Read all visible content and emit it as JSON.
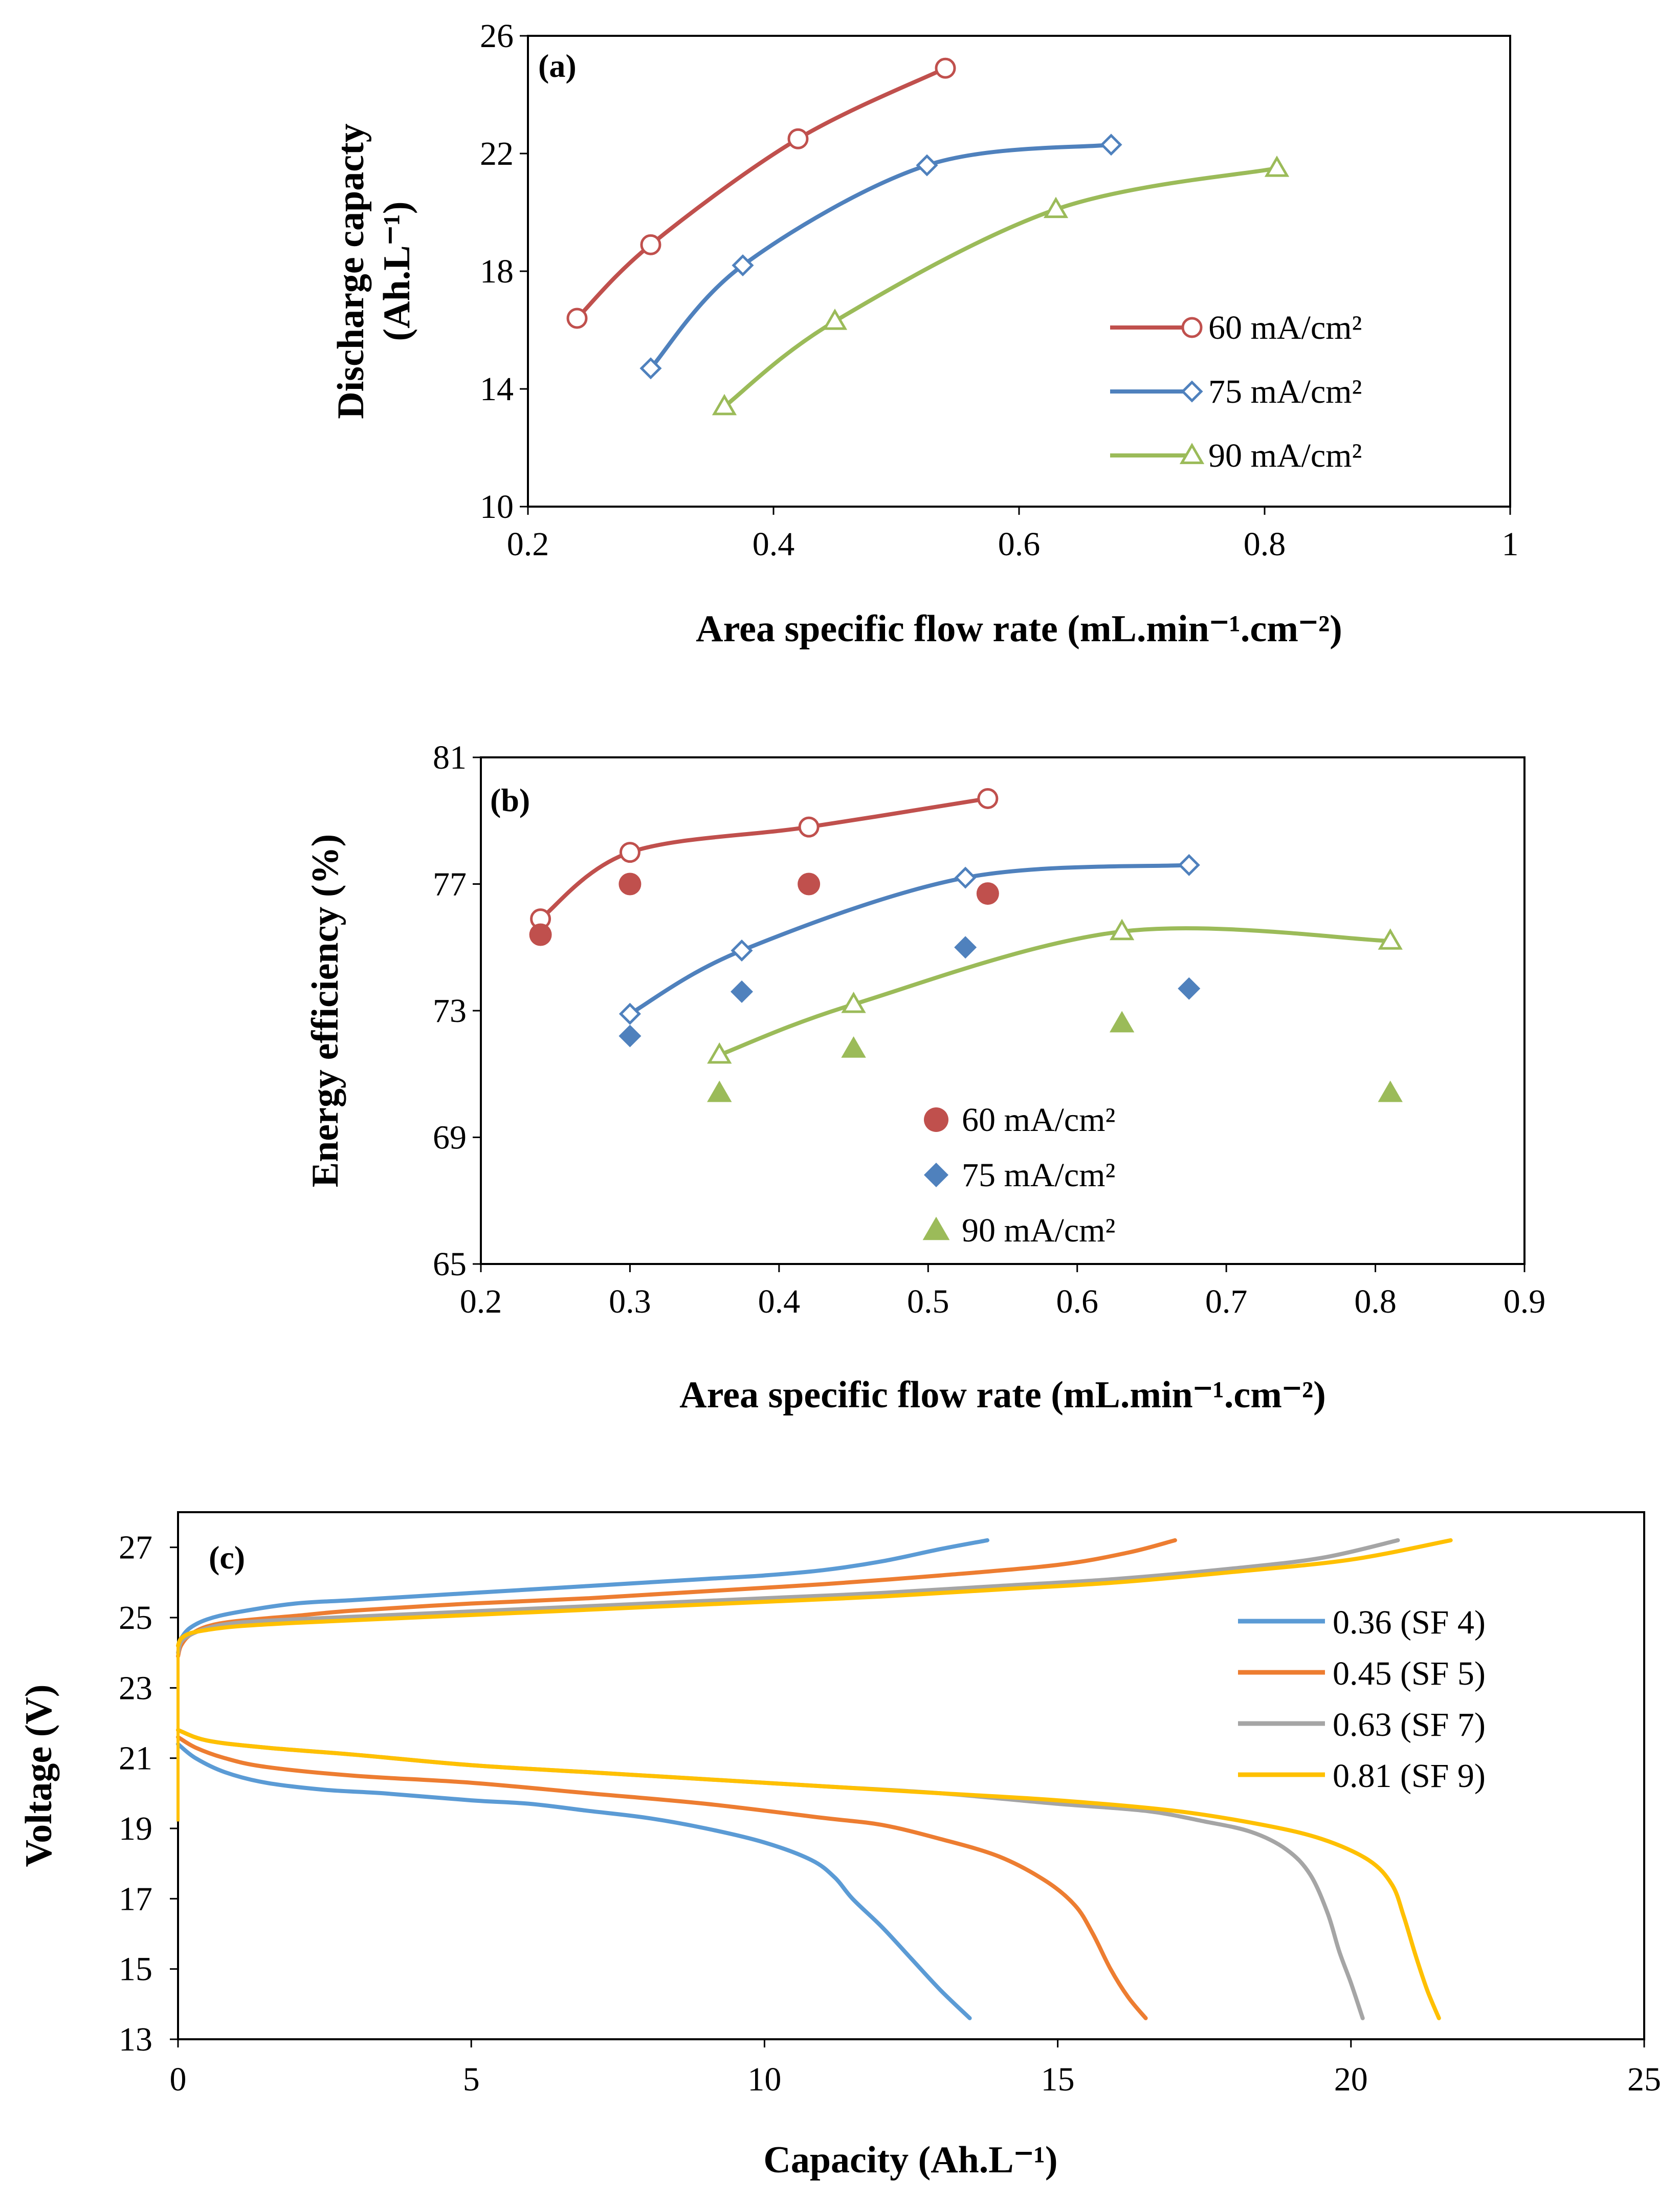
{
  "colors": {
    "red": "#C0504D",
    "blue": "#4F81BD",
    "green": "#9BBB59",
    "c_blue": "#5B9BD5",
    "c_orange": "#ED7D31",
    "c_gray": "#A5A5A5",
    "c_yellow": "#FFC000"
  },
  "chart_data": [
    {
      "id": "a",
      "type": "line",
      "label": "(a)",
      "xlabel": "Area specific flow rate (mL.min⁻¹.cm⁻²)",
      "ylabel_line1": "Discharge capacty",
      "ylabel_line2": "(Ah.L⁻¹)",
      "xlim": [
        0.2,
        1.0
      ],
      "ylim": [
        10,
        26
      ],
      "xticks": [
        0.2,
        0.4,
        0.6,
        0.8,
        1.0
      ],
      "xtick_labels": [
        "0.2",
        "0.4",
        "0.6",
        "0.8",
        "1"
      ],
      "yticks": [
        10,
        14,
        18,
        22,
        26
      ],
      "ytick_labels": [
        "10",
        "14",
        "18",
        "22",
        "26"
      ],
      "legend_position": "right",
      "series": [
        {
          "name": "60 mA/cm²",
          "marker": "circle",
          "color": "red",
          "x": [
            0.24,
            0.3,
            0.42,
            0.54
          ],
          "y": [
            16.4,
            18.9,
            22.5,
            24.9
          ]
        },
        {
          "name": "75 mA/cm²",
          "marker": "diamond",
          "color": "blue",
          "x": [
            0.3,
            0.375,
            0.525,
            0.675
          ],
          "y": [
            14.7,
            18.2,
            21.6,
            22.3
          ]
        },
        {
          "name": "90 mA/cm²",
          "marker": "triangle",
          "color": "green",
          "x": [
            0.36,
            0.45,
            0.63,
            0.81
          ],
          "y": [
            13.4,
            16.3,
            20.1,
            21.5
          ]
        }
      ]
    },
    {
      "id": "b",
      "type": "scatter",
      "label": "(b)",
      "xlabel": "Area specific flow rate (mL.min⁻¹.cm⁻²)",
      "ylabel": "Energy efficiency (%)",
      "xlim": [
        0.2,
        0.9
      ],
      "ylim": [
        65,
        81
      ],
      "xticks": [
        0.2,
        0.3,
        0.4,
        0.5,
        0.6,
        0.7,
        0.8,
        0.9
      ],
      "xtick_labels": [
        "0.2",
        "0.3",
        "0.4",
        "0.5",
        "0.6",
        "0.7",
        "0.8",
        "0.9"
      ],
      "yticks": [
        65,
        69,
        73,
        77,
        81
      ],
      "ytick_labels": [
        "65",
        "69",
        "73",
        "77",
        "81"
      ],
      "legend_position": "bottom-center",
      "series": [
        {
          "name": "60 mA/cm²",
          "marker": "filled-circle",
          "color": "red",
          "x": [
            0.24,
            0.3,
            0.42,
            0.54
          ],
          "y": [
            75.4,
            77.0,
            77.0,
            76.7
          ]
        },
        {
          "name": "75 mA/cm²",
          "marker": "filled-diamond",
          "color": "blue",
          "x": [
            0.3,
            0.375,
            0.525,
            0.675
          ],
          "y": [
            72.2,
            73.6,
            75.0,
            73.7
          ]
        },
        {
          "name": "90 mA/cm²",
          "marker": "filled-triangle",
          "color": "green",
          "x": [
            0.36,
            0.45,
            0.63,
            0.81
          ],
          "y": [
            70.4,
            71.8,
            72.6,
            70.4
          ]
        }
      ],
      "trend_series": [
        {
          "color": "red",
          "marker": "circle",
          "x": [
            0.24,
            0.3,
            0.42,
            0.54
          ],
          "y": [
            75.9,
            78.0,
            78.8,
            79.7
          ]
        },
        {
          "color": "blue",
          "marker": "diamond",
          "x": [
            0.3,
            0.375,
            0.525,
            0.675
          ],
          "y": [
            72.9,
            74.9,
            77.2,
            77.6
          ]
        },
        {
          "color": "green",
          "marker": "triangle",
          "x": [
            0.36,
            0.45,
            0.63,
            0.81
          ],
          "y": [
            71.6,
            73.2,
            75.5,
            75.2
          ]
        }
      ]
    },
    {
      "id": "c",
      "type": "line",
      "label": "(c)",
      "xlabel": "Capacity (Ah.L⁻¹)",
      "ylabel": "Voltage (V)",
      "xlim": [
        0,
        25
      ],
      "ylim": [
        13,
        28
      ],
      "xticks": [
        0,
        5,
        10,
        15,
        20,
        25
      ],
      "xtick_labels": [
        "0",
        "5",
        "10",
        "15",
        "20",
        "25"
      ],
      "yticks": [
        13,
        15,
        17,
        19,
        21,
        23,
        25,
        27
      ],
      "ytick_labels": [
        "13",
        "15",
        "17",
        "19",
        "21",
        "23",
        "25",
        "27"
      ],
      "legend_position": "right",
      "series": [
        {
          "name": "0.36 (SF 4)",
          "color": "c_blue",
          "charge_x": [
            0,
            0.05,
            0.2,
            0.5,
            1,
            2,
            3,
            5,
            7,
            9,
            10,
            11,
            12,
            13,
            13.8
          ],
          "charge_y": [
            24.2,
            24.4,
            24.7,
            24.95,
            25.15,
            25.4,
            25.5,
            25.7,
            25.9,
            26.1,
            26.2,
            26.35,
            26.6,
            26.95,
            27.2
          ],
          "discharge_x": [
            0,
            0.3,
            0.8,
            1.5,
            2.5,
            3.5,
            5,
            6,
            7,
            8,
            9,
            10,
            10.8,
            11.2,
            11.5,
            12.0,
            12.5,
            13.0,
            13.5
          ],
          "discharge_y": [
            21.4,
            21.0,
            20.6,
            20.3,
            20.1,
            20.0,
            19.8,
            19.7,
            19.5,
            19.3,
            19.0,
            18.6,
            18.1,
            17.6,
            17.0,
            16.2,
            15.3,
            14.4,
            13.6
          ]
        },
        {
          "name": "0.45 (SF 5)",
          "color": "c_orange",
          "charge_x": [
            0,
            0.05,
            0.2,
            0.5,
            1,
            2,
            3,
            5,
            7,
            9,
            11,
            13,
            15,
            16.2,
            17.0
          ],
          "charge_y": [
            23.9,
            24.2,
            24.5,
            24.75,
            24.9,
            25.05,
            25.2,
            25.4,
            25.55,
            25.75,
            25.95,
            26.2,
            26.5,
            26.85,
            27.2
          ],
          "discharge_x": [
            0,
            0.3,
            0.8,
            1.5,
            3,
            5,
            7,
            9,
            11,
            12,
            13,
            14,
            14.8,
            15.3,
            15.6,
            15.9,
            16.2,
            16.5
          ],
          "discharge_y": [
            21.6,
            21.3,
            21.0,
            20.75,
            20.5,
            20.3,
            20.0,
            19.7,
            19.3,
            19.1,
            18.7,
            18.2,
            17.5,
            16.8,
            16.0,
            15.0,
            14.2,
            13.6
          ]
        },
        {
          "name": "0.63 (SF 7)",
          "color": "c_gray",
          "charge_x": [
            0,
            0.05,
            0.2,
            0.5,
            1,
            2,
            4,
            6,
            8,
            10,
            12,
            14,
            16,
            18,
            19.5,
            20.8
          ],
          "charge_y": [
            24.0,
            24.3,
            24.5,
            24.7,
            24.85,
            24.95,
            25.1,
            25.25,
            25.4,
            25.55,
            25.7,
            25.9,
            26.1,
            26.4,
            26.7,
            27.2
          ],
          "discharge_x": [
            0,
            0.5,
            1.5,
            3,
            5,
            7,
            9,
            11,
            13,
            15,
            16.5,
            17.5,
            18.3,
            18.9,
            19.3,
            19.6,
            19.8,
            20.0,
            20.2
          ],
          "discharge_y": [
            21.8,
            21.5,
            21.3,
            21.1,
            20.8,
            20.6,
            20.4,
            20.2,
            20.0,
            19.7,
            19.5,
            19.2,
            18.9,
            18.4,
            17.7,
            16.6,
            15.5,
            14.6,
            13.6
          ]
        },
        {
          "name": "0.81 (SF 9)",
          "color": "c_yellow",
          "charge_x": [
            0,
            0.05,
            0.2,
            0.5,
            1,
            2,
            4,
            6,
            8,
            10,
            12,
            14,
            16,
            18,
            20,
            21.7
          ],
          "charge_y": [
            24.2,
            24.4,
            24.55,
            24.65,
            24.75,
            24.85,
            25.0,
            25.15,
            25.3,
            25.45,
            25.6,
            25.8,
            26.0,
            26.3,
            26.65,
            27.2
          ],
          "discharge_x": [
            0,
            0.5,
            1.5,
            3,
            5,
            7,
            9,
            11,
            13,
            15,
            17,
            18.5,
            19.5,
            20.3,
            20.7,
            20.9,
            21.1,
            21.3,
            21.5
          ],
          "discharge_y": [
            21.8,
            21.5,
            21.3,
            21.1,
            20.8,
            20.6,
            20.4,
            20.2,
            20.0,
            19.8,
            19.5,
            19.1,
            18.7,
            18.1,
            17.4,
            16.5,
            15.4,
            14.4,
            13.6
          ]
        }
      ]
    }
  ]
}
